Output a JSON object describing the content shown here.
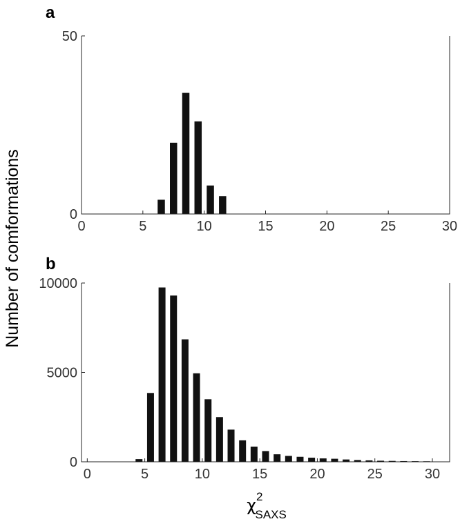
{
  "figure": {
    "ylabel": "Number of comformations",
    "xlabel_main": "χ",
    "xlabel_sup": "2",
    "xlabel_sub": "SAXS"
  },
  "chart_data": [
    {
      "panel_label": "a",
      "type": "bar",
      "x": [
        6.5,
        7.5,
        8.5,
        9.5,
        10.5,
        11.5
      ],
      "values": [
        4,
        20,
        34,
        26,
        8,
        5
      ],
      "xlim": [
        0,
        30
      ],
      "ylim": [
        0,
        50
      ],
      "xticks": [
        0,
        5,
        10,
        15,
        20,
        25,
        30
      ],
      "yticks": [
        0,
        50
      ],
      "bar_color": "#111111",
      "grid": false
    },
    {
      "panel_label": "b",
      "type": "bar",
      "x": [
        4.5,
        5.5,
        6.5,
        7.5,
        8.5,
        9.5,
        10.5,
        11.5,
        12.5,
        13.5,
        14.5,
        15.5,
        16.5,
        17.5,
        18.5,
        19.5,
        20.5,
        21.5,
        22.5,
        23.5,
        24.5,
        25.5,
        26.5,
        27.5,
        28.5,
        29.5
      ],
      "values": [
        150,
        3850,
        9750,
        9300,
        6850,
        4950,
        3500,
        2500,
        1800,
        1200,
        850,
        600,
        420,
        330,
        280,
        230,
        190,
        170,
        130,
        100,
        80,
        60,
        50,
        40,
        35,
        30
      ],
      "xlim": [
        -0.5,
        31.5
      ],
      "ylim": [
        0,
        10000
      ],
      "xticks": [
        0,
        5,
        10,
        15,
        20,
        25,
        30
      ],
      "yticks": [
        0,
        5000,
        10000
      ],
      "bar_color": "#111111",
      "grid": false
    }
  ]
}
